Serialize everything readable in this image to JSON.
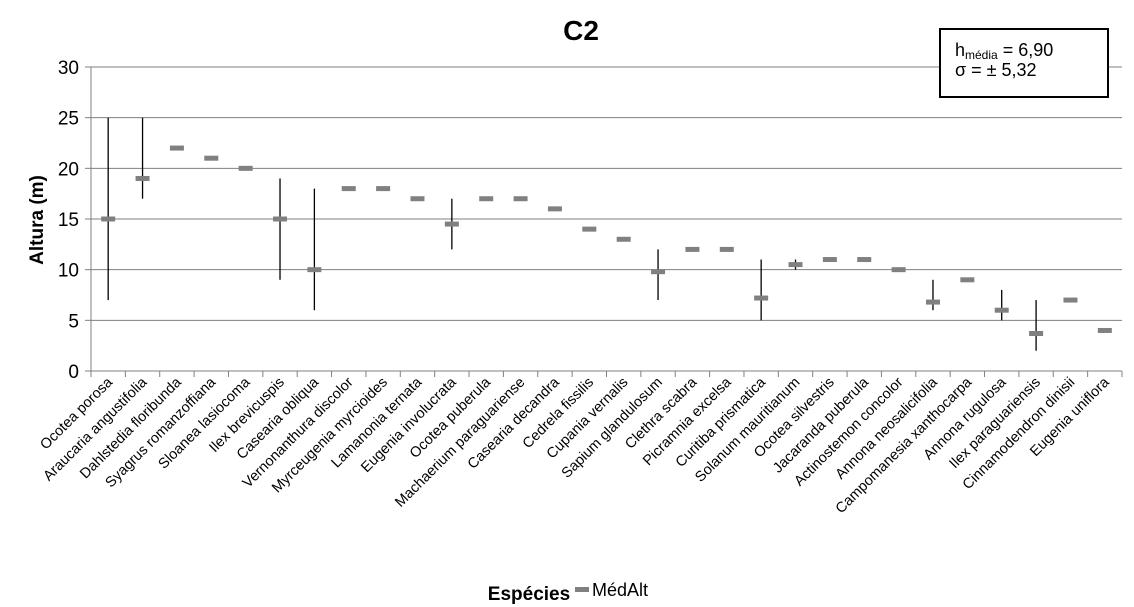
{
  "chart_data": {
    "type": "range",
    "title": "C2",
    "xlabel": "Espécies",
    "ylabel": "Altura (m)",
    "ylim": [
      0,
      30
    ],
    "yticks": [
      0,
      5,
      10,
      15,
      20,
      25,
      30
    ],
    "grid": true,
    "legend": {
      "position": "bottom-center",
      "label": "MédAlt"
    },
    "annotation": {
      "h_label": "h",
      "h_sub": "média",
      "h_value": "= 6,90",
      "sigma_text": "σ = ± 5,32"
    },
    "colors": {
      "mean_marker": "#808080",
      "range_line": "#000000",
      "grid": "#808080"
    },
    "categories": [
      "Ocotea porosa",
      "Araucaria angustifolia",
      "Dahlstedia floribunda",
      "Syagrus romanzoffiana",
      "Sloanea lasiocoma",
      "Ilex brevicuspis",
      "Casearia obliqua",
      "Vernonanthura discolor",
      "Myrceugenia myrcioides",
      "Lamanonia ternata",
      "Eugenia involucrata",
      "Ocotea puberula",
      "Machaerium paraguariense",
      "Casearia decandra",
      "Cedrela fissilis",
      "Cupania vernalis",
      "Sapium glandulosum",
      "Clethra scabra",
      "Picramnia excelsa",
      "Curitiba prismatica",
      "Solanum mauritianum",
      "Ocotea silvestris",
      "Jacaranda puberula",
      "Actinostemon concolor",
      "Annona neosalicifolia",
      "Campomanesia xanthocarpa",
      "Annona rugulosa",
      "Ilex paraguariensis",
      "Cinnamodendron dinisii",
      "Eugenia uniflora"
    ],
    "mean": [
      15,
      19,
      22,
      21,
      20,
      15,
      10,
      18,
      18,
      17,
      14.5,
      17,
      17,
      16,
      14,
      13,
      9.8,
      12,
      12,
      7.2,
      10.5,
      11,
      11,
      10,
      6.8,
      9,
      6,
      3.7,
      7,
      4
    ],
    "min": [
      7,
      17,
      null,
      null,
      null,
      9,
      6,
      null,
      null,
      null,
      12,
      null,
      null,
      null,
      null,
      null,
      7,
      null,
      null,
      5,
      10,
      null,
      null,
      null,
      6,
      null,
      5,
      2,
      null,
      null
    ],
    "max": [
      25,
      25,
      null,
      null,
      null,
      19,
      18,
      null,
      null,
      null,
      17,
      null,
      null,
      null,
      null,
      null,
      12,
      null,
      null,
      11,
      11,
      null,
      null,
      null,
      9,
      null,
      8,
      7,
      null,
      null
    ]
  }
}
